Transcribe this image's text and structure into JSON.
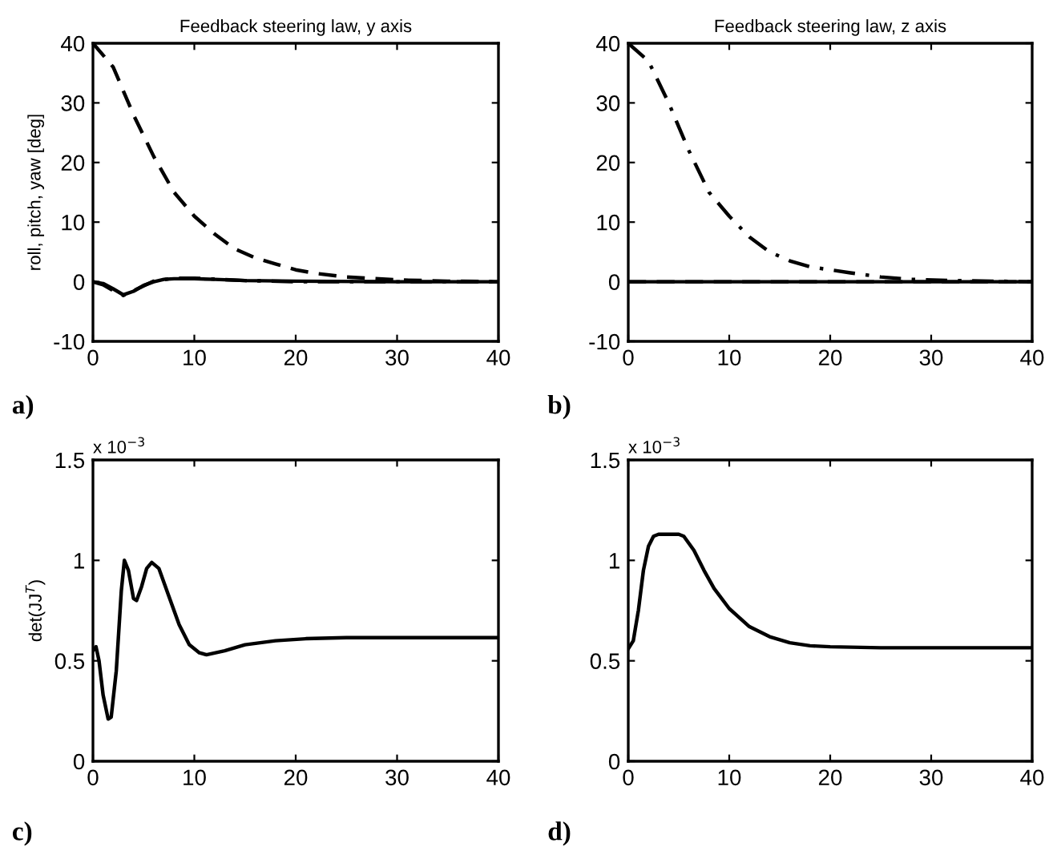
{
  "chart_data": [
    {
      "type": "line",
      "title": "Feedback steering law, y axis",
      "ylabel": "roll, pitch, yaw [deg]",
      "xlim": [
        0,
        40
      ],
      "xticks": [
        0,
        10,
        20,
        30,
        40
      ],
      "ylim": [
        -10,
        40
      ],
      "yticks": [
        -10,
        0,
        10,
        20,
        30,
        40
      ],
      "grid": false,
      "marker": "none",
      "annotations": [
        "a)"
      ],
      "series": [
        {
          "color": "#000000",
          "line_style": "dashed",
          "x": [
            0,
            2,
            4,
            6,
            8,
            10,
            12,
            14,
            16,
            18,
            20,
            22,
            25,
            30,
            35,
            40
          ],
          "values": [
            40,
            36,
            28,
            21,
            15,
            11,
            8,
            5.5,
            4,
            3,
            2,
            1.4,
            0.8,
            0.3,
            0.1,
            0
          ]
        },
        {
          "color": "#000000",
          "line_style": "solid",
          "x": [
            0,
            1,
            2,
            3,
            4,
            5,
            6,
            7,
            8,
            10,
            12,
            15,
            20,
            30,
            40
          ],
          "values": [
            0,
            -0.3,
            -1.2,
            -2.2,
            -1.6,
            -0.6,
            0,
            0.4,
            0.5,
            0.5,
            0.4,
            0.2,
            0.1,
            0,
            0
          ]
        },
        {
          "color": "#000000",
          "line_style": "dashdot",
          "x": [
            0,
            1,
            2,
            3,
            4,
            6,
            8,
            10,
            15,
            20,
            40
          ],
          "values": [
            0,
            -0.5,
            -1.5,
            -2.3,
            -1.5,
            0.1,
            0.6,
            0.6,
            0.2,
            0,
            0
          ]
        }
      ]
    },
    {
      "type": "line",
      "title": "Feedback steering law, z axis",
      "xlim": [
        0,
        40
      ],
      "xticks": [
        0,
        10,
        20,
        30,
        40
      ],
      "ylim": [
        -10,
        40
      ],
      "yticks": [
        -10,
        0,
        10,
        20,
        30,
        40
      ],
      "grid": false,
      "marker": "none",
      "annotations": [
        "b)"
      ],
      "series": [
        {
          "color": "#000000",
          "line_style": "dashdot",
          "x": [
            0,
            2,
            4,
            6,
            8,
            10,
            12,
            14,
            16,
            18,
            20,
            22,
            25,
            28,
            32,
            36,
            40
          ],
          "values": [
            40,
            37,
            30,
            22,
            15,
            11,
            7.5,
            5,
            3.5,
            2.5,
            2,
            1.5,
            0.8,
            0.4,
            0.2,
            0.1,
            0
          ]
        },
        {
          "color": "#000000",
          "line_style": "solid",
          "x": [
            0,
            40
          ],
          "values": [
            0,
            0
          ]
        },
        {
          "color": "#000000",
          "line_style": "dashed",
          "x": [
            0,
            40
          ],
          "values": [
            0,
            0
          ]
        }
      ]
    },
    {
      "type": "line",
      "ylabel": "det(JJ$^{T}$)",
      "xlim": [
        0,
        40
      ],
      "xticks": [
        0,
        10,
        20,
        30,
        40
      ],
      "ylim": [
        0,
        1.5
      ],
      "yticks": [
        0,
        0.5,
        1,
        1.5
      ],
      "grid": false,
      "marker": "none",
      "annotations": [
        "x 10$^{−3}$",
        "c)"
      ],
      "series": [
        {
          "color": "#000000",
          "line_style": "solid",
          "x": [
            0,
            0.3,
            0.6,
            1,
            1.5,
            1.8,
            2.3,
            2.8,
            3.1,
            3.5,
            4,
            4.3,
            4.8,
            5.3,
            5.8,
            6.5,
            7.5,
            8.5,
            9.5,
            10.5,
            11.2,
            13,
            15,
            18,
            21,
            25,
            30,
            40
          ],
          "values": [
            0.55,
            0.57,
            0.5,
            0.33,
            0.21,
            0.22,
            0.45,
            0.85,
            1.0,
            0.95,
            0.81,
            0.8,
            0.87,
            0.96,
            0.99,
            0.96,
            0.82,
            0.68,
            0.58,
            0.54,
            0.53,
            0.55,
            0.58,
            0.6,
            0.61,
            0.615,
            0.615,
            0.615
          ]
        }
      ]
    },
    {
      "type": "line",
      "xlim": [
        0,
        40
      ],
      "xticks": [
        0,
        10,
        20,
        30,
        40
      ],
      "ylim": [
        0,
        1.5
      ],
      "yticks": [
        0,
        0.5,
        1,
        1.5
      ],
      "grid": false,
      "marker": "none",
      "annotations": [
        "x 10$^{−3}$",
        "d)"
      ],
      "series": [
        {
          "color": "#000000",
          "line_style": "solid",
          "x": [
            0,
            0.5,
            1,
            1.5,
            2,
            2.5,
            3,
            4,
            5,
            5.5,
            6.5,
            7.5,
            8.5,
            10,
            12,
            14,
            16,
            18,
            20,
            25,
            40
          ],
          "values": [
            0.56,
            0.6,
            0.75,
            0.95,
            1.07,
            1.12,
            1.13,
            1.13,
            1.13,
            1.12,
            1.05,
            0.95,
            0.86,
            0.76,
            0.67,
            0.62,
            0.59,
            0.575,
            0.57,
            0.565,
            0.565
          ]
        }
      ]
    }
  ]
}
